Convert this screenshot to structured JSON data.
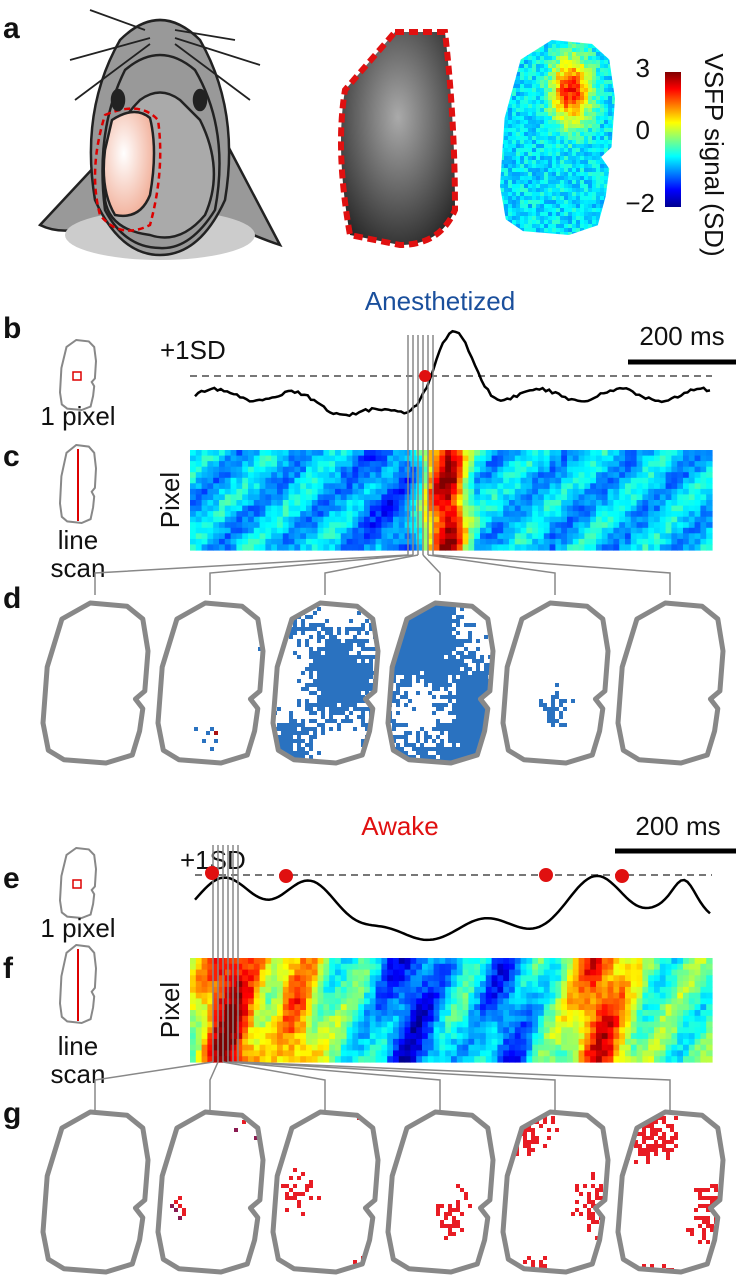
{
  "panels": {
    "a": {
      "label": "a",
      "colorbar": {
        "title": "VSFP signal (SD)",
        "ticks": [
          "3",
          "0",
          "−2"
        ]
      }
    },
    "b": {
      "label": "b",
      "title": "Anesthetized",
      "scale_bar": "200 ms",
      "threshold": "+1SD",
      "icon_label": "1 pixel"
    },
    "c": {
      "label": "c",
      "icon_label": [
        "line",
        "scan"
      ],
      "axis_label": "Pixel"
    },
    "d": {
      "label": "d"
    },
    "e": {
      "label": "e",
      "title": "Awake",
      "scale_bar": "200 ms",
      "threshold": "+1SD",
      "icon_label": "1 pixel"
    },
    "f": {
      "label": "f",
      "icon_label": [
        "line",
        "scan"
      ],
      "axis_label": "Pixel"
    },
    "g": {
      "label": "g"
    }
  }
}
